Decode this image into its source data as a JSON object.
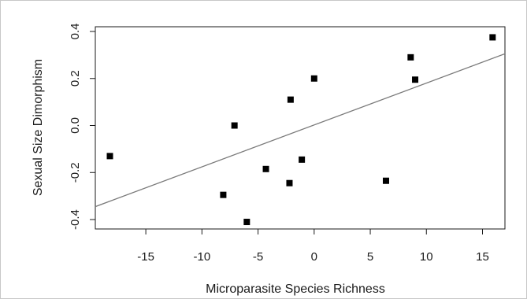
{
  "chart_data": {
    "type": "scatter",
    "title": "",
    "xlabel": "Microparasite Species Richness",
    "ylabel": "Sexual Size Dimorphism",
    "xlim": [
      -19.5,
      17
    ],
    "ylim": [
      -0.44,
      0.42
    ],
    "x_ticks": [
      -15,
      -10,
      -5,
      0,
      5,
      10,
      15
    ],
    "x_tick_labels": [
      "-15",
      "-10",
      "-5",
      "0",
      "5",
      "10",
      "15"
    ],
    "y_ticks": [
      -0.4,
      -0.2,
      0.0,
      0.2,
      0.4
    ],
    "y_tick_labels": [
      "-0.4",
      "-0.2",
      "0.0",
      "0.2",
      "0.4"
    ],
    "grid": false,
    "legend": "none",
    "point_color": "#000000",
    "line_color": "#7a7a7a",
    "series": [
      {
        "type": "scatter",
        "points": [
          {
            "x": -18.2,
            "y": -0.13
          },
          {
            "x": -8.1,
            "y": -0.295
          },
          {
            "x": -7.1,
            "y": 0.0
          },
          {
            "x": -6.0,
            "y": -0.41
          },
          {
            "x": -4.3,
            "y": -0.185
          },
          {
            "x": -2.2,
            "y": -0.245
          },
          {
            "x": -2.1,
            "y": 0.11
          },
          {
            "x": -1.1,
            "y": -0.145
          },
          {
            "x": 0.0,
            "y": 0.2
          },
          {
            "x": 6.4,
            "y": -0.235
          },
          {
            "x": 8.6,
            "y": 0.29
          },
          {
            "x": 9.0,
            "y": 0.195
          },
          {
            "x": 15.9,
            "y": 0.375
          }
        ]
      },
      {
        "type": "line",
        "points": [
          {
            "x": -19.5,
            "y": -0.345
          },
          {
            "x": 17.0,
            "y": 0.305
          }
        ]
      }
    ]
  }
}
